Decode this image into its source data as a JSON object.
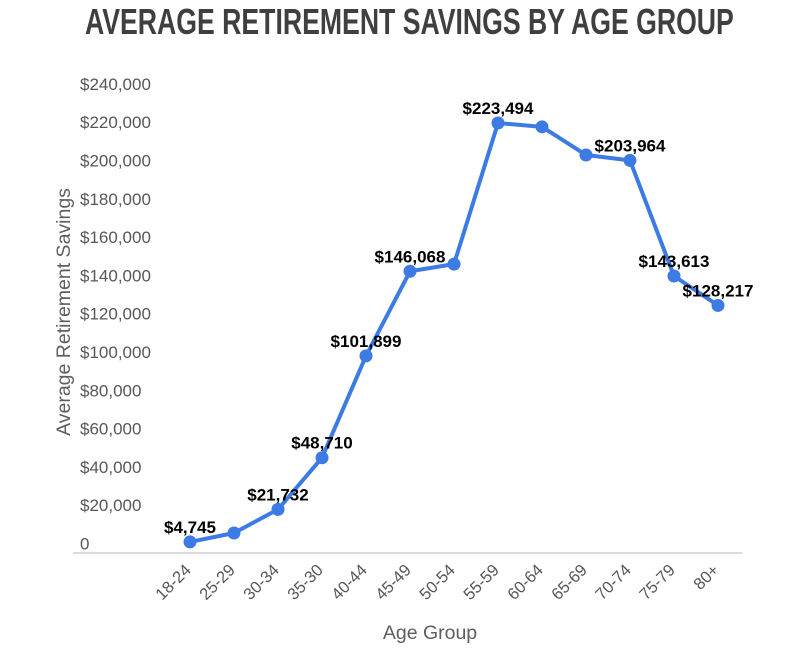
{
  "chart_data": {
    "type": "line",
    "title": "AVERAGE RETIREMENT SAVINGS BY AGE GROUP",
    "xlabel": "Age Group",
    "ylabel": "Average Retirement Savings",
    "categories": [
      "18-24",
      "25-29",
      "30-34",
      "35-30",
      "40-44",
      "45-49",
      "50-54",
      "55-59",
      "60-64",
      "65-69",
      "70-74",
      "75-79",
      "80+"
    ],
    "values": [
      4745,
      9408,
      21732,
      48710,
      101899,
      146068,
      149800,
      223494,
      221500,
      206800,
      203964,
      143613,
      128217
    ],
    "data_labels": [
      "$4,745",
      null,
      "$21,732",
      "$48,710",
      "$101,899",
      "$146,068",
      null,
      "$223,494",
      null,
      null,
      "$203,964",
      "$143,613",
      "$128,217"
    ],
    "y_ticks": [
      "0",
      "$20,000",
      "$40,000",
      "$60,000",
      "$80,000",
      "$100,000",
      "$120,000",
      "$140,000",
      "$160,000",
      "$180,000",
      "$200,000",
      "$220,000",
      "$240,000"
    ],
    "ylim": [
      0,
      240000
    ],
    "y_tick_step": 20000,
    "grid": "none",
    "legend": "none",
    "colors": {
      "line": "#3d7be4",
      "marker": "#3d7be4",
      "data_label": "#000000",
      "tick_label": "#575757",
      "axis_title": "#5e5e5e",
      "title": "#3f3f3f",
      "axis_line": "#dbdbdb"
    }
  }
}
